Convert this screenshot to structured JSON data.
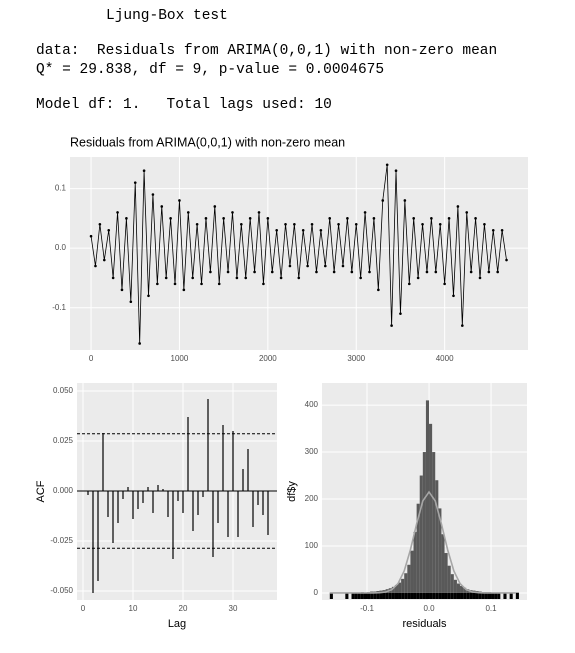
{
  "console": {
    "lines": [
      "Ljung-Box test",
      "data:  Residuals from ARIMA(0,0,1) with non-zero mean",
      "Q* = 29.838, df = 9, p-value = 0.0004675",
      "Model df: 1.   Total lags used: 10"
    ]
  },
  "chart_data": [
    {
      "type": "line",
      "title": "Residuals from ARIMA(0,0,1) with non-zero mean",
      "color": "#000000",
      "x": [
        0,
        50,
        100,
        150,
        200,
        250,
        300,
        350,
        400,
        450,
        500,
        550,
        600,
        650,
        700,
        750,
        800,
        850,
        900,
        950,
        1000,
        1050,
        1100,
        1150,
        1200,
        1250,
        1300,
        1350,
        1400,
        1450,
        1500,
        1550,
        1600,
        1650,
        1700,
        1750,
        1800,
        1850,
        1900,
        1950,
        2000,
        2050,
        2100,
        2150,
        2200,
        2250,
        2300,
        2350,
        2400,
        2450,
        2500,
        2550,
        2600,
        2650,
        2700,
        2750,
        2800,
        2850,
        2900,
        2950,
        3000,
        3050,
        3100,
        3150,
        3200,
        3250,
        3300,
        3350,
        3400,
        3450,
        3500,
        3550,
        3600,
        3650,
        3700,
        3750,
        3800,
        3850,
        3900,
        3950,
        4000,
        4050,
        4100,
        4150,
        4200,
        4250,
        4300,
        4350,
        4400,
        4450,
        4500,
        4550,
        4600,
        4650,
        4700
      ],
      "values": [
        0.02,
        -0.03,
        0.04,
        -0.02,
        0.03,
        -0.05,
        0.06,
        -0.07,
        0.05,
        -0.09,
        0.11,
        -0.16,
        0.13,
        -0.08,
        0.09,
        -0.06,
        0.07,
        -0.05,
        0.05,
        -0.06,
        0.08,
        -0.07,
        0.06,
        -0.05,
        0.04,
        -0.06,
        0.05,
        -0.04,
        0.07,
        -0.06,
        0.05,
        -0.04,
        0.06,
        -0.05,
        0.04,
        -0.05,
        0.05,
        -0.04,
        0.06,
        -0.06,
        0.05,
        -0.04,
        0.03,
        -0.05,
        0.04,
        -0.03,
        0.04,
        -0.05,
        0.03,
        -0.03,
        0.04,
        -0.04,
        0.03,
        -0.03,
        0.05,
        -0.04,
        0.04,
        -0.03,
        0.05,
        -0.04,
        0.04,
        -0.05,
        0.06,
        -0.04,
        0.05,
        -0.07,
        0.08,
        0.14,
        -0.13,
        0.13,
        -0.11,
        0.08,
        -0.06,
        0.05,
        -0.05,
        0.04,
        -0.04,
        0.05,
        -0.04,
        0.04,
        -0.06,
        0.05,
        -0.08,
        0.07,
        -0.13,
        0.06,
        -0.04,
        0.05,
        -0.05,
        0.04,
        -0.04,
        0.03,
        -0.04,
        0.03,
        -0.02
      ],
      "xlim": [
        -238,
        4943
      ],
      "ylim": [
        -0.171,
        0.153
      ],
      "xticks": [
        0,
        1000,
        2000,
        3000,
        4000
      ],
      "yticks": [
        -0.1,
        {
          "value": 0,
          "label": "0.0"
        },
        0.1
      ],
      "grid": true
    },
    {
      "type": "bar",
      "xlabel": "Lag",
      "ylabel": "ACF",
      "color": "#000000",
      "ci_color": "#000000",
      "x": [
        1,
        2,
        3,
        4,
        5,
        6,
        7,
        8,
        9,
        10,
        11,
        12,
        13,
        14,
        15,
        16,
        17,
        18,
        19,
        20,
        21,
        22,
        23,
        24,
        25,
        26,
        27,
        28,
        29,
        30,
        31,
        32,
        33,
        34,
        35,
        36,
        37
      ],
      "values": [
        -0.002,
        -0.051,
        -0.045,
        0.029,
        -0.013,
        -0.026,
        -0.016,
        -0.004,
        0.002,
        -0.014,
        -0.009,
        -0.006,
        0.002,
        -0.011,
        0.003,
        0.001,
        -0.013,
        -0.034,
        -0.005,
        -0.011,
        0.037,
        -0.02,
        -0.012,
        -0.003,
        0.046,
        -0.033,
        -0.016,
        0.033,
        -0.023,
        0.03,
        -0.023,
        0.011,
        0.021,
        -0.018,
        -0.007,
        -0.012,
        -0.022
      ],
      "ci": [
        0.0286,
        -0.0286
      ],
      "xlim": [
        -1.2,
        38.8
      ],
      "ylim": [
        -0.0545,
        0.054
      ],
      "xticks": [
        0,
        10,
        20,
        30
      ],
      "yticks": [
        {
          "value": -0.05,
          "label": "-0.050"
        },
        -0.025,
        {
          "value": 0,
          "label": "0.000"
        },
        0.025,
        {
          "value": 0.05,
          "label": "0.050"
        }
      ],
      "grid": true
    },
    {
      "type": "histogram",
      "xlabel": "residuals",
      "ylabel": "df$y",
      "color": "#595959",
      "curve_color": "#a6a6a6",
      "bins": [
        -0.16,
        -0.155,
        -0.15,
        -0.145,
        -0.14,
        -0.135,
        -0.13,
        -0.125,
        -0.12,
        -0.115,
        -0.11,
        -0.105,
        -0.1,
        -0.095,
        -0.09,
        -0.085,
        -0.08,
        -0.075,
        -0.07,
        -0.065,
        -0.06,
        -0.055,
        -0.05,
        -0.045,
        -0.04,
        -0.035,
        -0.03,
        -0.025,
        -0.02,
        -0.015,
        -0.01,
        -0.005,
        0,
        0.005,
        0.01,
        0.015,
        0.02,
        0.025,
        0.03,
        0.035,
        0.04,
        0.045,
        0.05,
        0.055,
        0.06,
        0.065,
        0.07,
        0.075,
        0.08,
        0.085,
        0.09,
        0.095,
        0.1,
        0.105,
        0.11,
        0.115,
        0.12,
        0.125,
        0.13,
        0.135,
        0.14,
        0.145
      ],
      "values": [
        1,
        0,
        0,
        0,
        0,
        1,
        0,
        1,
        1,
        1,
        2,
        1,
        2,
        3,
        3,
        4,
        5,
        6,
        8,
        10,
        13,
        17,
        22,
        30,
        42,
        60,
        90,
        130,
        190,
        250,
        300,
        410,
        360,
        300,
        240,
        180,
        125,
        85,
        58,
        40,
        28,
        20,
        15,
        11,
        8,
        6,
        5,
        4,
        3,
        2,
        2,
        2,
        1,
        1,
        1,
        0,
        1,
        0,
        1,
        0,
        1
      ],
      "curve": {
        "x": [
          -0.16,
          -0.15,
          -0.14,
          -0.13,
          -0.12,
          -0.11,
          -0.1,
          -0.09,
          -0.08,
          -0.07,
          -0.06,
          -0.05,
          -0.04,
          -0.03,
          -0.02,
          -0.01,
          0,
          0.01,
          0.02,
          0.03,
          0.04,
          0.05,
          0.06,
          0.07,
          0.08,
          0.09,
          0.1,
          0.11,
          0.12,
          0.13,
          0.14
        ],
        "values": [
          0,
          0,
          0,
          0,
          0,
          0,
          0,
          0.1,
          0.5,
          2,
          7,
          20,
          47,
          92,
          147,
          196,
          215,
          196,
          147,
          92,
          47,
          20,
          7,
          2,
          0.5,
          0.1,
          0,
          0,
          0,
          0,
          0
        ]
      },
      "xlim": [
        -0.1726,
        0.158
      ],
      "ylim": [
        -15,
        447
      ],
      "xticks": [
        -0.1,
        {
          "value": 0,
          "label": "0.0"
        },
        0.1
      ],
      "yticks": [
        0,
        100,
        200,
        300,
        400
      ],
      "grid": true
    }
  ]
}
